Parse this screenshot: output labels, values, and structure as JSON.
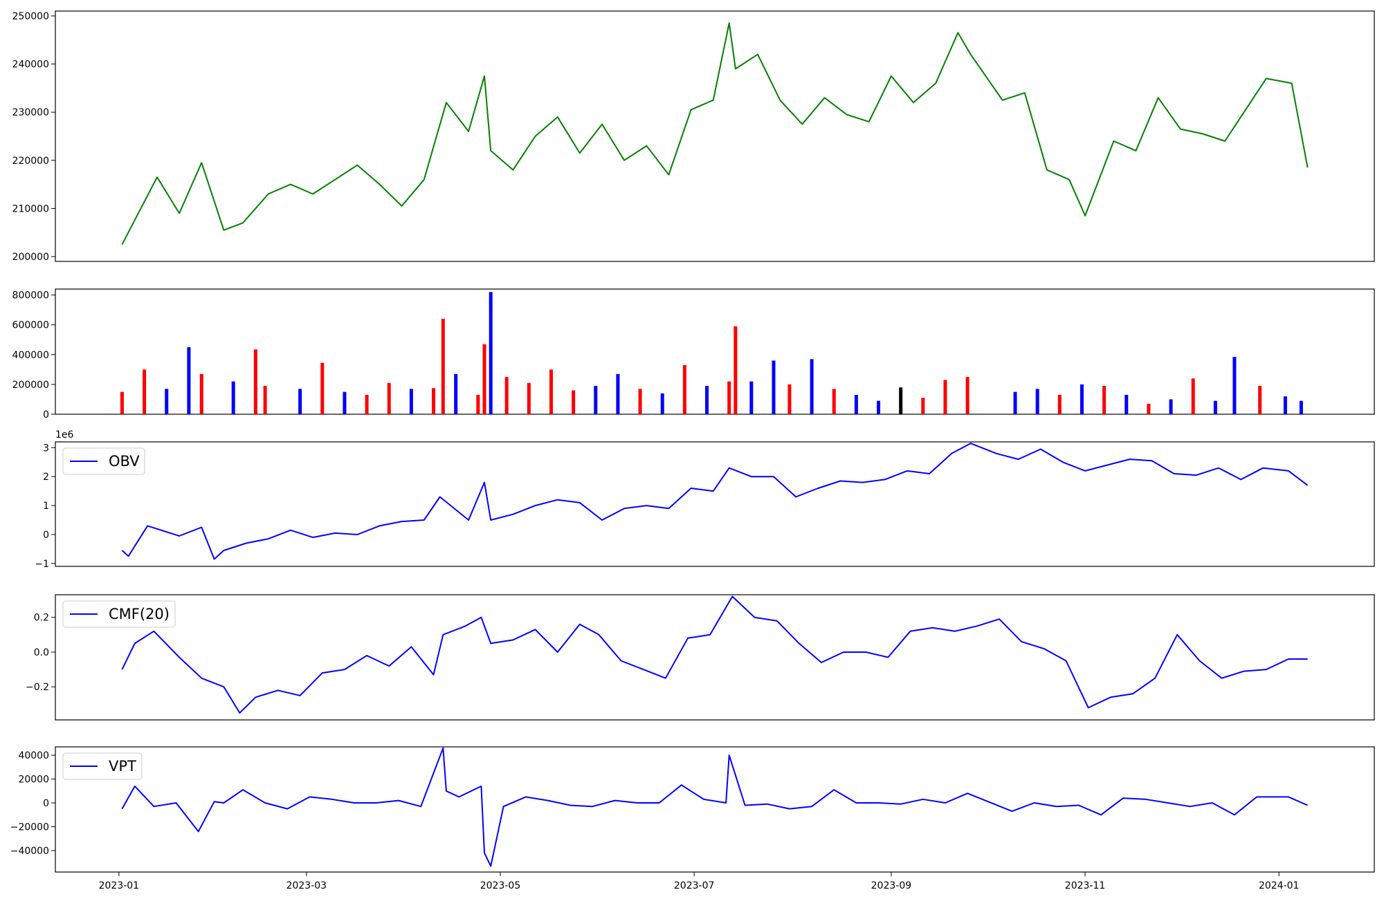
{
  "chart_data": [
    {
      "id": "price",
      "type": "line",
      "color": "#008000",
      "ylim": [
        199000,
        251000
      ],
      "yticks": [
        200000,
        210000,
        220000,
        230000,
        240000,
        250000
      ],
      "ytick_labels": [
        "200000",
        "210000",
        "220000",
        "230000",
        "240000",
        "250000"
      ],
      "x": [
        "2023-01-02",
        "2023-01-13",
        "2023-01-20",
        "2023-01-27",
        "2023-02-03",
        "2023-02-09",
        "2023-02-17",
        "2023-02-24",
        "2023-03-03",
        "2023-03-10",
        "2023-03-17",
        "2023-03-24",
        "2023-03-31",
        "2023-04-07",
        "2023-04-14",
        "2023-04-21",
        "2023-04-26",
        "2023-04-28",
        "2023-05-05",
        "2023-05-12",
        "2023-05-19",
        "2023-05-26",
        "2023-06-02",
        "2023-06-09",
        "2023-06-16",
        "2023-06-23",
        "2023-06-30",
        "2023-07-07",
        "2023-07-12",
        "2023-07-14",
        "2023-07-21",
        "2023-07-28",
        "2023-08-04",
        "2023-08-11",
        "2023-08-18",
        "2023-08-25",
        "2023-09-01",
        "2023-09-08",
        "2023-09-15",
        "2023-09-22",
        "2023-09-26",
        "2023-10-06",
        "2023-10-13",
        "2023-10-20",
        "2023-10-27",
        "2023-11-01",
        "2023-11-10",
        "2023-11-17",
        "2023-11-24",
        "2023-12-01",
        "2023-12-08",
        "2023-12-15",
        "2023-12-22",
        "2023-12-28",
        "2024-01-05",
        "2024-01-10"
      ],
      "values": [
        202500,
        216500,
        209000,
        219500,
        205500,
        207000,
        213000,
        215000,
        213000,
        216000,
        219000,
        215000,
        210500,
        216000,
        232000,
        226000,
        237500,
        222000,
        218000,
        225000,
        229000,
        221500,
        227500,
        220000,
        223000,
        217000,
        230500,
        232500,
        248500,
        239000,
        242000,
        232500,
        227500,
        233000,
        229500,
        228000,
        237500,
        232000,
        236000,
        246500,
        242000,
        232500,
        234000,
        218000,
        216000,
        208500,
        224000,
        222000,
        233000,
        226500,
        225500,
        224000,
        231000,
        237000,
        236000,
        218500
      ]
    },
    {
      "id": "volume",
      "type": "bar",
      "ylim": [
        0,
        840000
      ],
      "yticks": [
        0,
        200000,
        400000,
        600000,
        800000
      ],
      "ytick_labels": [
        "0",
        "200000",
        "400000",
        "600000",
        "800000"
      ],
      "x": [
        "2023-01-02",
        "2023-01-09",
        "2023-01-16",
        "2023-01-23",
        "2023-01-27",
        "2023-02-06",
        "2023-02-13",
        "2023-02-16",
        "2023-02-27",
        "2023-03-06",
        "2023-03-13",
        "2023-03-20",
        "2023-03-27",
        "2023-04-03",
        "2023-04-10",
        "2023-04-13",
        "2023-04-17",
        "2023-04-24",
        "2023-04-26",
        "2023-04-28",
        "2023-05-03",
        "2023-05-10",
        "2023-05-17",
        "2023-05-24",
        "2023-05-31",
        "2023-06-07",
        "2023-06-14",
        "2023-06-21",
        "2023-06-28",
        "2023-07-05",
        "2023-07-12",
        "2023-07-14",
        "2023-07-19",
        "2023-07-26",
        "2023-07-31",
        "2023-08-07",
        "2023-08-14",
        "2023-08-21",
        "2023-08-28",
        "2023-09-04",
        "2023-09-11",
        "2023-09-18",
        "2023-09-25",
        "2023-10-10",
        "2023-10-17",
        "2023-10-24",
        "2023-10-31",
        "2023-11-07",
        "2023-11-14",
        "2023-11-21",
        "2023-11-28",
        "2023-12-05",
        "2023-12-12",
        "2023-12-18",
        "2023-12-26",
        "2024-01-03",
        "2024-01-08"
      ],
      "values": [
        150000,
        300000,
        170000,
        450000,
        270000,
        220000,
        435000,
        190000,
        170000,
        345000,
        150000,
        130000,
        210000,
        170000,
        175000,
        640000,
        270000,
        130000,
        470000,
        820000,
        250000,
        210000,
        300000,
        160000,
        190000,
        270000,
        170000,
        140000,
        330000,
        190000,
        220000,
        590000,
        220000,
        360000,
        200000,
        370000,
        170000,
        130000,
        90000,
        180000,
        110000,
        230000,
        250000,
        150000,
        170000,
        130000,
        200000,
        190000,
        130000,
        70000,
        100000,
        240000,
        90000,
        385000,
        190000,
        120000,
        90000
      ],
      "colors": [
        "red",
        "red",
        "blue",
        "blue",
        "red",
        "blue",
        "red",
        "red",
        "blue",
        "red",
        "blue",
        "red",
        "red",
        "blue",
        "red",
        "red",
        "blue",
        "red",
        "red",
        "blue",
        "red",
        "red",
        "red",
        "red",
        "blue",
        "blue",
        "red",
        "blue",
        "red",
        "blue",
        "red",
        "red",
        "blue",
        "blue",
        "red",
        "blue",
        "red",
        "blue",
        "blue",
        "black",
        "red",
        "red",
        "red",
        "blue",
        "blue",
        "red",
        "blue",
        "red",
        "blue",
        "red",
        "blue",
        "red",
        "blue",
        "blue",
        "red",
        "blue",
        "blue"
      ]
    },
    {
      "id": "obv",
      "type": "line",
      "color": "#0000ff",
      "multiplier_label": "1e6",
      "legend": "OBV",
      "ylim": [
        -1.1,
        3.2
      ],
      "yticks": [
        -1,
        0,
        1,
        2,
        3
      ],
      "ytick_labels": [
        "−1",
        "0",
        "1",
        "2",
        "3"
      ],
      "x": [
        "2023-01-02",
        "2023-01-04",
        "2023-01-10",
        "2023-01-20",
        "2023-01-27",
        "2023-01-31",
        "2023-02-03",
        "2023-02-10",
        "2023-02-17",
        "2023-02-24",
        "2023-03-03",
        "2023-03-10",
        "2023-03-17",
        "2023-03-24",
        "2023-03-31",
        "2023-04-07",
        "2023-04-12",
        "2023-04-21",
        "2023-04-26",
        "2023-04-28",
        "2023-05-05",
        "2023-05-12",
        "2023-05-19",
        "2023-05-26",
        "2023-06-02",
        "2023-06-09",
        "2023-06-16",
        "2023-06-23",
        "2023-06-30",
        "2023-07-07",
        "2023-07-12",
        "2023-07-19",
        "2023-07-26",
        "2023-08-02",
        "2023-08-09",
        "2023-08-16",
        "2023-08-23",
        "2023-08-30",
        "2023-09-06",
        "2023-09-13",
        "2023-09-20",
        "2023-09-26",
        "2023-10-04",
        "2023-10-11",
        "2023-10-18",
        "2023-10-25",
        "2023-11-01",
        "2023-11-08",
        "2023-11-15",
        "2023-11-22",
        "2023-11-29",
        "2023-12-06",
        "2023-12-13",
        "2023-12-20",
        "2023-12-27",
        "2024-01-04",
        "2024-01-10"
      ],
      "values": [
        -0.55,
        -0.75,
        0.3,
        -0.05,
        0.25,
        -0.85,
        -0.55,
        -0.3,
        -0.15,
        0.15,
        -0.1,
        0.05,
        0.0,
        0.3,
        0.45,
        0.5,
        1.3,
        0.5,
        1.8,
        0.5,
        0.7,
        1.0,
        1.2,
        1.1,
        0.5,
        0.9,
        1.0,
        0.9,
        1.6,
        1.5,
        2.3,
        2.0,
        2.0,
        1.3,
        1.6,
        1.85,
        1.8,
        1.9,
        2.2,
        2.1,
        2.8,
        3.15,
        2.8,
        2.6,
        2.95,
        2.5,
        2.2,
        2.4,
        2.6,
        2.55,
        2.1,
        2.05,
        2.3,
        1.9,
        2.3,
        2.2,
        1.7
      ]
    },
    {
      "id": "cmf",
      "type": "line",
      "color": "#0000ff",
      "legend": "CMF(20)",
      "ylim": [
        -0.39,
        0.33
      ],
      "yticks": [
        -0.2,
        0.0,
        0.2
      ],
      "ytick_labels": [
        "−0.2",
        "0.0",
        "0.2"
      ],
      "x": [
        "2023-01-02",
        "2023-01-06",
        "2023-01-12",
        "2023-01-20",
        "2023-01-27",
        "2023-02-03",
        "2023-02-08",
        "2023-02-13",
        "2023-02-20",
        "2023-02-27",
        "2023-03-06",
        "2023-03-13",
        "2023-03-20",
        "2023-03-27",
        "2023-04-03",
        "2023-04-10",
        "2023-04-13",
        "2023-04-20",
        "2023-04-25",
        "2023-04-28",
        "2023-05-05",
        "2023-05-12",
        "2023-05-19",
        "2023-05-26",
        "2023-06-01",
        "2023-06-08",
        "2023-06-15",
        "2023-06-22",
        "2023-06-29",
        "2023-07-06",
        "2023-07-13",
        "2023-07-20",
        "2023-07-27",
        "2023-08-03",
        "2023-08-10",
        "2023-08-17",
        "2023-08-24",
        "2023-08-31",
        "2023-09-07",
        "2023-09-14",
        "2023-09-21",
        "2023-09-28",
        "2023-10-05",
        "2023-10-12",
        "2023-10-19",
        "2023-10-26",
        "2023-11-02",
        "2023-11-09",
        "2023-11-16",
        "2023-11-23",
        "2023-11-30",
        "2023-12-07",
        "2023-12-14",
        "2023-12-21",
        "2023-12-28",
        "2024-01-04",
        "2024-01-10"
      ],
      "values": [
        -0.1,
        0.05,
        0.12,
        -0.03,
        -0.15,
        -0.2,
        -0.35,
        -0.26,
        -0.22,
        -0.25,
        -0.12,
        -0.1,
        -0.02,
        -0.08,
        0.03,
        -0.13,
        0.1,
        0.15,
        0.2,
        0.05,
        0.07,
        0.13,
        0.0,
        0.16,
        0.1,
        -0.05,
        -0.1,
        -0.15,
        0.08,
        0.1,
        0.32,
        0.2,
        0.18,
        0.05,
        -0.06,
        0.0,
        0.0,
        -0.03,
        0.12,
        0.14,
        0.12,
        0.15,
        0.19,
        0.06,
        0.02,
        -0.05,
        -0.32,
        -0.26,
        -0.24,
        -0.15,
        0.1,
        -0.05,
        -0.15,
        -0.11,
        -0.1,
        -0.04,
        -0.04
      ]
    },
    {
      "id": "vpt",
      "type": "line",
      "color": "#0000ff",
      "legend": "VPT",
      "ylim": [
        -58000,
        47000
      ],
      "yticks": [
        -40000,
        -20000,
        0,
        20000,
        40000
      ],
      "ytick_labels": [
        "−40000",
        "−20000",
        "0",
        "20000",
        "40000"
      ],
      "x": [
        "2023-01-02",
        "2023-01-06",
        "2023-01-12",
        "2023-01-19",
        "2023-01-26",
        "2023-01-31",
        "2023-02-03",
        "2023-02-09",
        "2023-02-16",
        "2023-02-23",
        "2023-03-02",
        "2023-03-09",
        "2023-03-16",
        "2023-03-23",
        "2023-03-30",
        "2023-04-06",
        "2023-04-13",
        "2023-04-14",
        "2023-04-18",
        "2023-04-25",
        "2023-04-26",
        "2023-04-28",
        "2023-05-02",
        "2023-05-09",
        "2023-05-16",
        "2023-05-23",
        "2023-05-30",
        "2023-06-06",
        "2023-06-13",
        "2023-06-20",
        "2023-06-27",
        "2023-07-04",
        "2023-07-11",
        "2023-07-12",
        "2023-07-17",
        "2023-07-24",
        "2023-07-31",
        "2023-08-07",
        "2023-08-14",
        "2023-08-21",
        "2023-08-28",
        "2023-09-04",
        "2023-09-11",
        "2023-09-18",
        "2023-09-25",
        "2023-10-09",
        "2023-10-16",
        "2023-10-23",
        "2023-10-30",
        "2023-11-06",
        "2023-11-13",
        "2023-11-20",
        "2023-11-27",
        "2023-12-04",
        "2023-12-11",
        "2023-12-18",
        "2023-12-25",
        "2024-01-04",
        "2024-01-10"
      ],
      "values": [
        -5000,
        14000,
        -3000,
        0,
        -24000,
        1000,
        0,
        11000,
        0,
        -5000,
        5000,
        3000,
        0,
        0,
        2000,
        -3000,
        46000,
        10000,
        5000,
        14000,
        -42000,
        -53000,
        -3000,
        5000,
        2000,
        -2000,
        -3000,
        2000,
        0,
        0,
        15000,
        3000,
        0,
        40000,
        -2000,
        -1000,
        -5000,
        -3000,
        11000,
        0,
        0,
        -1000,
        3000,
        0,
        8000,
        -7000,
        0,
        -3000,
        -2000,
        -10000,
        4000,
        3000,
        0,
        -3000,
        0,
        -10000,
        5000,
        5000,
        -2000
      ]
    }
  ],
  "x_axis": {
    "tick_labels": [
      "2023-01",
      "2023-03",
      "2023-05",
      "2023-07",
      "2023-09",
      "2023-11",
      "2024-01"
    ],
    "tick_dates": [
      "2023-01-01",
      "2023-03-01",
      "2023-05-01",
      "2023-07-01",
      "2023-09-01",
      "2023-11-01",
      "2024-01-01"
    ],
    "range": [
      "2022-12-12",
      "2024-01-31"
    ]
  }
}
